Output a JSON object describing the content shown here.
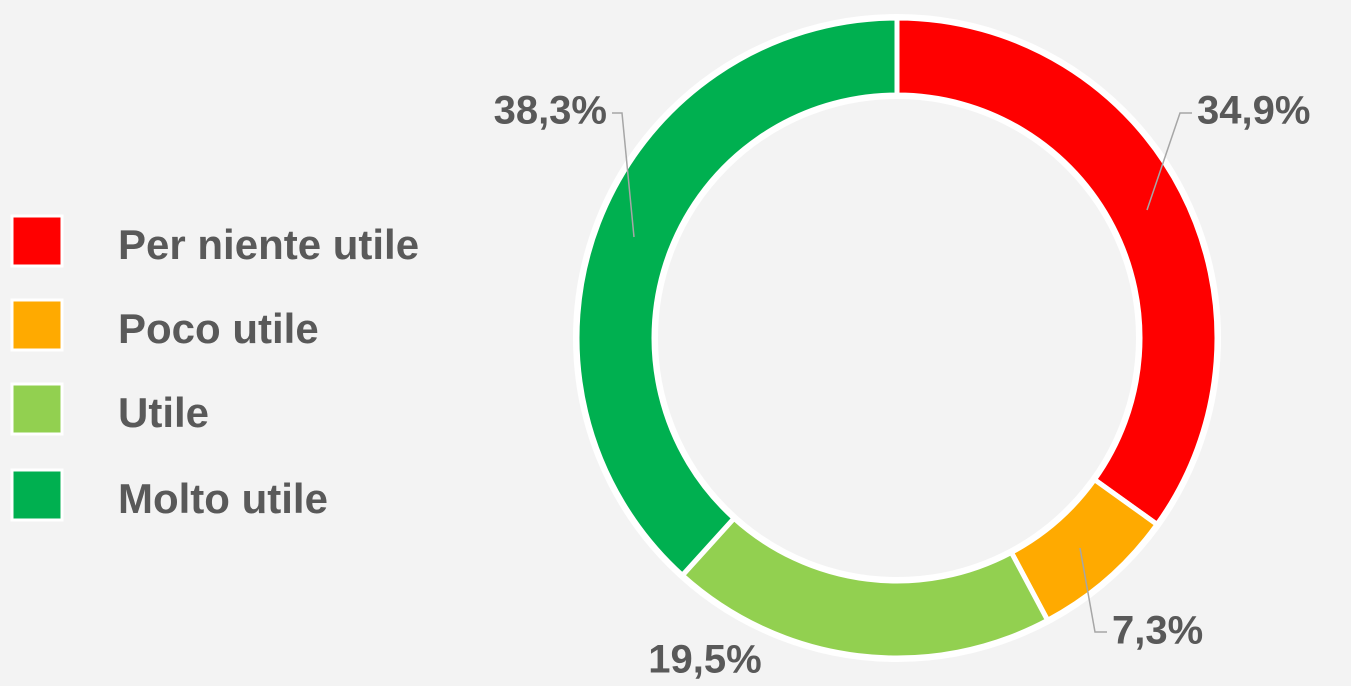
{
  "chart_data": {
    "type": "donut",
    "categories": [
      "Per niente utile",
      "Poco utile",
      "Utile",
      "Molto utile"
    ],
    "values": [
      34.9,
      7.3,
      19.5,
      38.3
    ],
    "value_labels": [
      "34,9%",
      "7,3%",
      "19,5%",
      "38,3%"
    ],
    "colors": [
      "#ff0000",
      "#ffaa00",
      "#92d050",
      "#00b050"
    ],
    "legend": "left"
  }
}
